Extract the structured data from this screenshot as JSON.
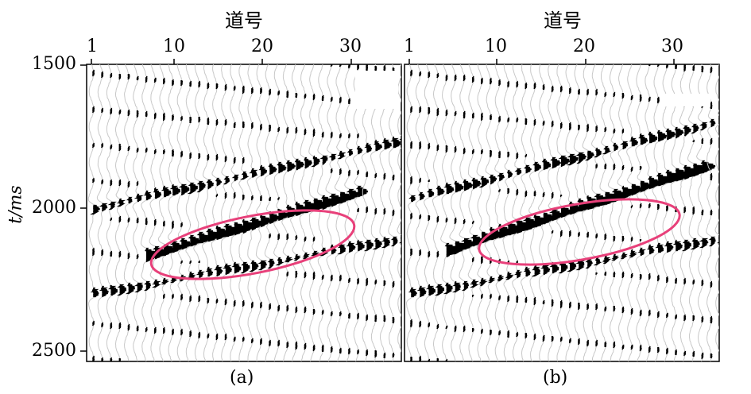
{
  "figure": {
    "panels": [
      {
        "label": "(a)",
        "x_axis_title": "道号",
        "x_ticks": [
          "1",
          "10",
          "20",
          "30"
        ]
      },
      {
        "label": "(b)",
        "x_axis_title": "道号",
        "x_ticks": [
          "1",
          "10",
          "20",
          "30"
        ]
      }
    ],
    "y_axis": {
      "label": "t/ms",
      "ticks": [
        "1500",
        "2000",
        "2500"
      ]
    },
    "highlight_color": "#e8407a",
    "wiggle_color": "#000000",
    "trace_count": 36,
    "time_range_ms": [
      1500,
      2530
    ]
  }
}
